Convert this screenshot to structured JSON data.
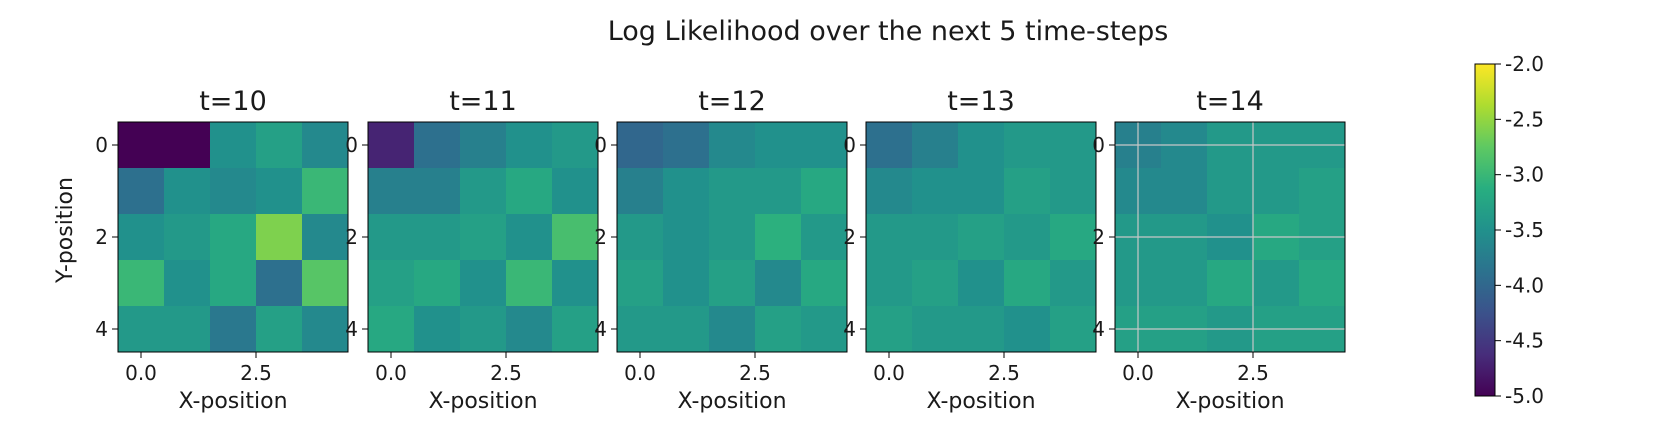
{
  "chart_data": {
    "type": "heatmap",
    "title": "Log Likelihood over the next 5 time-steps",
    "xlabel": "X-position",
    "ylabel": "Y-position",
    "x_ticks": [
      "0.0",
      "2.5"
    ],
    "y_ticks": [
      "0",
      "2",
      "4"
    ],
    "colormap": "viridis",
    "colorbar": {
      "vmin": -5.0,
      "vmax": -2.0,
      "ticks": [
        "-2.0",
        "-2.5",
        "-3.0",
        "-3.5",
        "-4.0",
        "-4.5",
        "-5.0"
      ]
    },
    "panels": [
      {
        "title": "t=10",
        "grid": false,
        "values": [
          [
            -5.0,
            -5.0,
            -3.5,
            -3.3,
            -3.6
          ],
          [
            -3.9,
            -3.5,
            -3.6,
            -3.5,
            -3.0
          ],
          [
            -3.5,
            -3.4,
            -3.2,
            -2.6,
            -3.6
          ],
          [
            -3.0,
            -3.5,
            -3.2,
            -3.9,
            -2.8
          ],
          [
            -3.4,
            -3.4,
            -3.8,
            -3.3,
            -3.6
          ]
        ]
      },
      {
        "title": "t=11",
        "grid": false,
        "values": [
          [
            -4.7,
            -3.9,
            -3.7,
            -3.5,
            -3.4
          ],
          [
            -3.7,
            -3.7,
            -3.4,
            -3.2,
            -3.5
          ],
          [
            -3.4,
            -3.4,
            -3.3,
            -3.5,
            -2.9
          ],
          [
            -3.3,
            -3.2,
            -3.5,
            -3.0,
            -3.5
          ],
          [
            -3.2,
            -3.5,
            -3.4,
            -3.6,
            -3.3
          ]
        ]
      },
      {
        "title": "t=12",
        "grid": false,
        "values": [
          [
            -4.0,
            -3.9,
            -3.6,
            -3.5,
            -3.5
          ],
          [
            -3.7,
            -3.5,
            -3.4,
            -3.4,
            -3.2
          ],
          [
            -3.4,
            -3.5,
            -3.4,
            -3.1,
            -3.4
          ],
          [
            -3.3,
            -3.5,
            -3.3,
            -3.6,
            -3.2
          ],
          [
            -3.4,
            -3.4,
            -3.6,
            -3.3,
            -3.4
          ]
        ]
      },
      {
        "title": "t=13",
        "grid": false,
        "values": [
          [
            -3.9,
            -3.7,
            -3.5,
            -3.4,
            -3.4
          ],
          [
            -3.6,
            -3.5,
            -3.5,
            -3.3,
            -3.4
          ],
          [
            -3.4,
            -3.4,
            -3.3,
            -3.4,
            -3.2
          ],
          [
            -3.4,
            -3.3,
            -3.5,
            -3.2,
            -3.4
          ],
          [
            -3.3,
            -3.4,
            -3.4,
            -3.5,
            -3.3
          ]
        ]
      },
      {
        "title": "t=14",
        "grid": true,
        "values": [
          [
            -3.7,
            -3.6,
            -3.4,
            -3.4,
            -3.4
          ],
          [
            -3.6,
            -3.6,
            -3.4,
            -3.4,
            -3.3
          ],
          [
            -3.4,
            -3.4,
            -3.5,
            -3.2,
            -3.3
          ],
          [
            -3.4,
            -3.4,
            -3.2,
            -3.4,
            -3.2
          ],
          [
            -3.3,
            -3.3,
            -3.4,
            -3.3,
            -3.3
          ]
        ]
      }
    ]
  }
}
